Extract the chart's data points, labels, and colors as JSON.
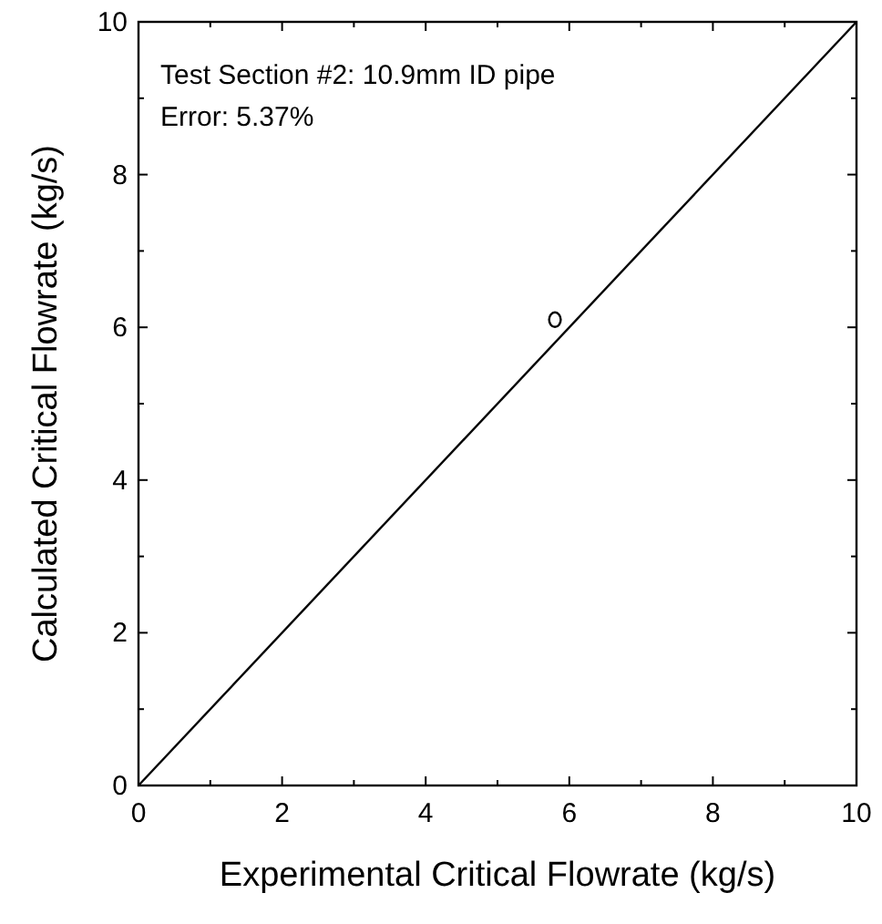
{
  "chart_data": {
    "type": "scatter",
    "xlabel": "Experimental Critical Flowrate (kg/s)",
    "ylabel": "Calculated Critical Flowrate (kg/s)",
    "annotations": [
      "Test Section #2: 10.9mm ID pipe",
      "Error: 5.37%"
    ],
    "series": [
      {
        "type": "line",
        "color": "#000000",
        "x": [
          0,
          10
        ],
        "values": [
          0,
          10
        ],
        "marker": "none",
        "line_style": "solid"
      },
      {
        "color": "#000000",
        "x": [
          5.8
        ],
        "values": [
          6.1
        ],
        "marker": "circle"
      }
    ],
    "xlim": [
      0,
      10
    ],
    "ylim": [
      0,
      10
    ],
    "xticks": [
      0,
      {
        "value": 1,
        "label": null
      },
      2,
      {
        "value": 3,
        "label": null
      },
      4,
      {
        "value": 5,
        "label": null
      },
      6,
      {
        "value": 7,
        "label": null
      },
      8,
      {
        "value": 9,
        "label": null
      },
      10
    ],
    "yticks": [
      0,
      {
        "value": 1,
        "label": null
      },
      2,
      {
        "value": 3,
        "label": null
      },
      4,
      {
        "value": 5,
        "label": null
      },
      6,
      {
        "value": 7,
        "label": null
      },
      8,
      {
        "value": 9,
        "label": null
      },
      10
    ],
    "grid": false
  }
}
